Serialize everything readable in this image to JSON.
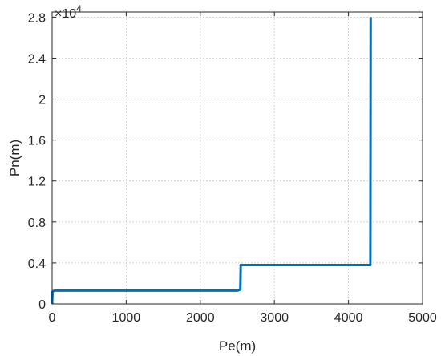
{
  "chart_data": {
    "type": "line",
    "title": "",
    "xlabel": "Pe(m)",
    "ylabel": "Pn(m)",
    "xlim": [
      0,
      5000
    ],
    "ylim": [
      0,
      2.85
    ],
    "y_scale_note": "×10^4",
    "y_exponent_base": "×10",
    "y_exponent_power": "4",
    "x_ticks": [
      "0",
      "1000",
      "2000",
      "3000",
      "4000",
      "5000"
    ],
    "y_ticks": [
      "0",
      "0.4",
      "0.8",
      "1.2",
      "1.6",
      "2",
      "2.4",
      "2.8"
    ],
    "x_tick_values": [
      0,
      1000,
      2000,
      3000,
      4000,
      5000
    ],
    "y_tick_values": [
      0,
      0.4,
      0.8,
      1.2,
      1.6,
      2.0,
      2.4,
      2.8
    ],
    "grid": true,
    "series": [
      {
        "color": "#0072bd",
        "x": [
          0,
          5,
          30,
          2500,
          2540,
          2545,
          4290,
          4295,
          4300
        ],
        "y": [
          0,
          0.12,
          0.13,
          0.13,
          0.14,
          0.38,
          0.38,
          0.38,
          2.8
        ]
      }
    ]
  }
}
